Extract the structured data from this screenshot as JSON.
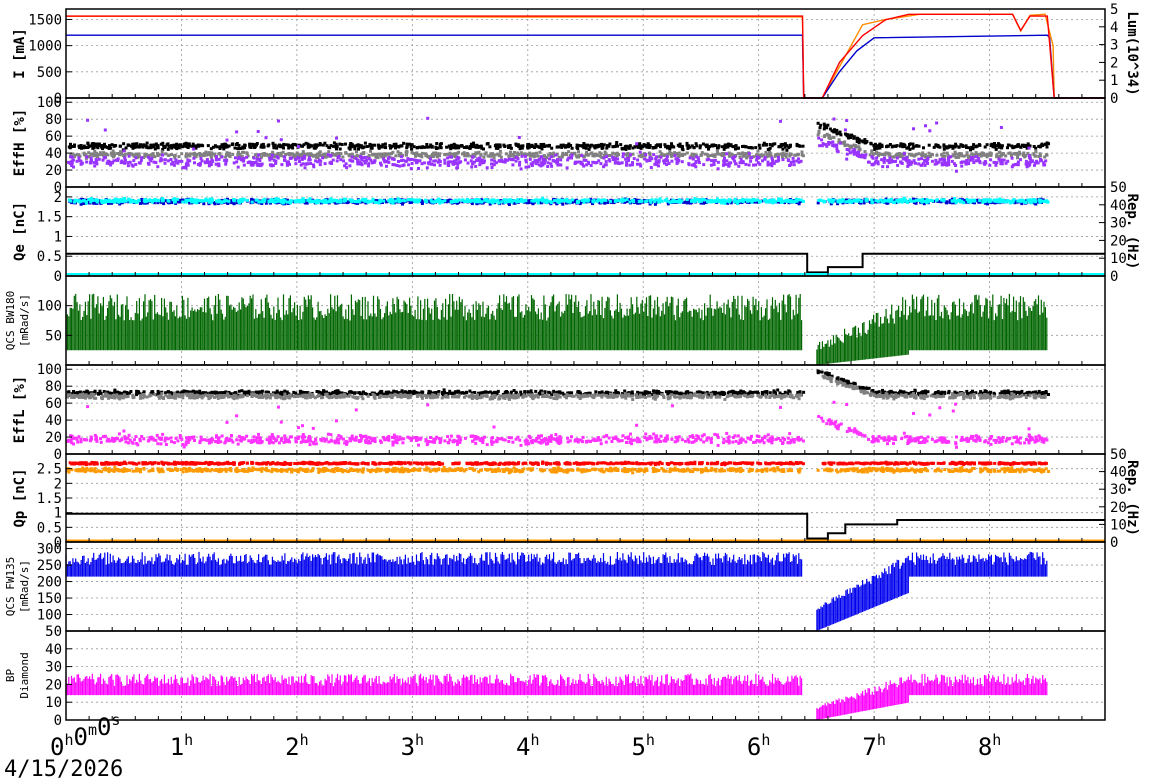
{
  "date_label": "4/15/2026",
  "chart_data": {
    "type": "line",
    "x_unit": "hours",
    "x_range": [
      0,
      9
    ],
    "x_ticks": [
      {
        "value": 0,
        "label": "0",
        "sup": "h",
        "label2": "0",
        "sup2": "m",
        "label3": "0",
        "sup3": "s"
      },
      {
        "value": 1,
        "label": "1",
        "sup": "h"
      },
      {
        "value": 2,
        "label": "2",
        "sup": "h"
      },
      {
        "value": 3,
        "label": "3",
        "sup": "h"
      },
      {
        "value": 4,
        "label": "4",
        "sup": "h"
      },
      {
        "value": 5,
        "label": "5",
        "sup": "h"
      },
      {
        "value": 6,
        "label": "6",
        "sup": "h"
      },
      {
        "value": 7,
        "label": "7",
        "sup": "h"
      },
      {
        "value": 8,
        "label": "8",
        "sup": "h"
      }
    ],
    "grid": true,
    "panels": [
      {
        "id": "current",
        "ylabel": "I [mA]",
        "ylim": [
          0,
          1700
        ],
        "yticks": [
          0,
          500,
          1000,
          1500
        ],
        "ylabel_right": "Lum(10^34)",
        "ylim_right": [
          0,
          5
        ],
        "yticks_right": [
          0,
          1,
          2,
          3,
          4,
          5
        ],
        "series": [
          {
            "color": "#ff8c00",
            "values": [
              [
                0,
                1560
              ],
              [
                1.7,
                1560
              ],
              [
                2.4,
                1555
              ],
              [
                4.0,
                1545
              ],
              [
                4.8,
                1550
              ],
              [
                6.38,
                1550
              ],
              [
                6.39,
                0
              ],
              [
                6.55,
                0
              ],
              [
                6.7,
                600
              ],
              [
                6.9,
                1400
              ],
              [
                7.1,
                1500
              ],
              [
                7.4,
                1600
              ],
              [
                8.2,
                1600
              ],
              [
                8.27,
                1280
              ],
              [
                8.35,
                1580
              ],
              [
                8.48,
                1600
              ],
              [
                8.55,
                1000
              ],
              [
                8.56,
                0
              ],
              [
                9,
                0
              ]
            ]
          },
          {
            "color": "#0000cc",
            "values": [
              [
                0,
                1200
              ],
              [
                6.38,
                1200
              ],
              [
                6.39,
                0
              ],
              [
                6.55,
                0
              ],
              [
                6.7,
                500
              ],
              [
                6.85,
                900
              ],
              [
                7.0,
                1150
              ],
              [
                8.5,
                1200
              ],
              [
                8.52,
                1150
              ],
              [
                8.56,
                0
              ],
              [
                9,
                0
              ]
            ]
          },
          {
            "color": "#ff0000",
            "axis": "right",
            "values": [
              [
                0,
                4.6
              ],
              [
                6.38,
                4.6
              ],
              [
                6.39,
                0
              ],
              [
                6.55,
                0
              ],
              [
                6.7,
                2.0
              ],
              [
                6.9,
                3.5
              ],
              [
                7.1,
                4.4
              ],
              [
                7.3,
                4.7
              ],
              [
                8.2,
                4.7
              ],
              [
                8.27,
                3.8
              ],
              [
                8.35,
                4.6
              ],
              [
                8.5,
                4.6
              ],
              [
                8.56,
                0
              ],
              [
                9,
                0
              ]
            ]
          }
        ]
      },
      {
        "id": "effH",
        "ylabel": "EffH [%]",
        "ylim": [
          0,
          105
        ],
        "yticks": [
          0,
          20,
          40,
          60,
          80,
          100
        ],
        "series": [
          {
            "color": "#000000",
            "kind": "dots",
            "mean": 48,
            "spread": 5
          },
          {
            "color": "#808080",
            "kind": "dots",
            "mean": 38,
            "spread": 5
          },
          {
            "color": "#9933ff",
            "kind": "dots",
            "mean": 30,
            "spread": 10,
            "outliers": true
          }
        ]
      },
      {
        "id": "qe",
        "ylabel": "Qe [nC]",
        "ylim": [
          0,
          2.25
        ],
        "yticks": [
          0,
          0.5,
          1,
          1.5,
          2
        ],
        "ylabel_right": "Rep. (Hz)",
        "ylim_right": [
          0,
          50
        ],
        "yticks_right": [
          0,
          10,
          20,
          30,
          40,
          50
        ],
        "series": [
          {
            "color": "#0000cc",
            "kind": "dots",
            "mean": 1.88,
            "spread": 0.08
          },
          {
            "color": "#00ffff",
            "kind": "dots",
            "mean": 1.9,
            "spread": 0.07
          },
          {
            "color": "#000000",
            "kind": "step",
            "axis": "right",
            "values": [
              [
                0,
                12.5
              ],
              [
                6.42,
                12.5
              ],
              [
                6.42,
                2
              ],
              [
                6.6,
                2
              ],
              [
                6.6,
                5
              ],
              [
                6.9,
                5
              ],
              [
                6.9,
                12.5
              ],
              [
                8.55,
                12.5
              ],
              [
                8.55,
                12.5
              ],
              [
                9,
                12.5
              ]
            ]
          },
          {
            "color": "#00ffff",
            "kind": "step",
            "values": [
              [
                0,
                0.05
              ],
              [
                9,
                0.05
              ]
            ]
          }
        ]
      },
      {
        "id": "bw180",
        "ylabel": "QCS BW180",
        "ylabel2": "[mRad/s]",
        "ylim": [
          0,
          150
        ],
        "yticks": [
          50,
          100
        ],
        "series": [
          {
            "color": "#006600",
            "kind": "band",
            "low": 25,
            "mean": 75,
            "peak": 120
          }
        ]
      },
      {
        "id": "effL",
        "ylabel": "EffL [%]",
        "ylim": [
          0,
          105
        ],
        "yticks": [
          0,
          20,
          40,
          60,
          80,
          100
        ],
        "series": [
          {
            "color": "#000000",
            "kind": "dots",
            "mean": 72,
            "spread": 4
          },
          {
            "color": "#808080",
            "kind": "dots",
            "mean": 68,
            "spread": 4
          },
          {
            "color": "#ff33ff",
            "kind": "dots",
            "mean": 17,
            "spread": 8,
            "outliers": true
          }
        ]
      },
      {
        "id": "qp",
        "ylabel": "Qp [nC]",
        "ylim": [
          0,
          3
        ],
        "yticks": [
          0,
          0.5,
          1,
          1.5,
          2,
          2.5
        ],
        "ylabel_right": "Rep. (Hz)",
        "ylim_right": [
          0,
          50
        ],
        "yticks_right": [
          0,
          10,
          20,
          30,
          40,
          50
        ],
        "series": [
          {
            "color": "#ff9900",
            "kind": "dots",
            "mean": 2.45,
            "spread": 0.1
          },
          {
            "color": "#ff0000",
            "kind": "dots",
            "mean": 2.68,
            "spread": 0.05
          },
          {
            "color": "#000000",
            "kind": "step",
            "axis": "right",
            "values": [
              [
                0,
                16
              ],
              [
                6.42,
                16
              ],
              [
                6.42,
                2
              ],
              [
                6.6,
                2
              ],
              [
                6.6,
                5
              ],
              [
                6.75,
                5
              ],
              [
                6.75,
                10
              ],
              [
                7.2,
                10
              ],
              [
                7.2,
                12.5
              ],
              [
                9,
                12.5
              ]
            ]
          },
          {
            "color": "#ff9900",
            "kind": "step",
            "values": [
              [
                0,
                0.05
              ],
              [
                9,
                0.05
              ]
            ]
          }
        ]
      },
      {
        "id": "fw135",
        "ylabel": "QCS FW135",
        "ylabel2": "[mRad/s]",
        "ylim": [
          50,
          320
        ],
        "yticks": [
          50,
          100,
          150,
          200,
          250,
          300
        ],
        "series": [
          {
            "color": "#0000ee",
            "kind": "band",
            "low": 215,
            "mean": 250,
            "peak": 290
          }
        ]
      },
      {
        "id": "bp",
        "ylabel": "BP",
        "ylabel2": "Diamond",
        "ylim": [
          0,
          50
        ],
        "yticks": [
          0,
          10,
          20,
          30,
          40
        ],
        "series": [
          {
            "color": "#ff00ff",
            "kind": "band",
            "low": 14,
            "mean": 19,
            "peak": 26
          }
        ]
      }
    ]
  }
}
